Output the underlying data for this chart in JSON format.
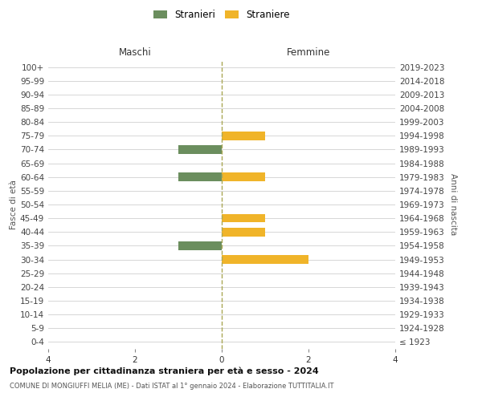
{
  "age_groups": [
    "100+",
    "95-99",
    "90-94",
    "85-89",
    "80-84",
    "75-79",
    "70-74",
    "65-69",
    "60-64",
    "55-59",
    "50-54",
    "45-49",
    "40-44",
    "35-39",
    "30-34",
    "25-29",
    "20-24",
    "15-19",
    "10-14",
    "5-9",
    "0-4"
  ],
  "birth_years": [
    "≤ 1923",
    "1924-1928",
    "1929-1933",
    "1934-1938",
    "1939-1943",
    "1944-1948",
    "1949-1953",
    "1954-1958",
    "1959-1963",
    "1964-1968",
    "1969-1973",
    "1974-1978",
    "1979-1983",
    "1984-1988",
    "1989-1993",
    "1994-1998",
    "1999-2003",
    "2004-2008",
    "2009-2013",
    "2014-2018",
    "2019-2023"
  ],
  "maschi": [
    0,
    0,
    0,
    0,
    0,
    0,
    1,
    0,
    1,
    0,
    0,
    0,
    0,
    1,
    0,
    0,
    0,
    0,
    0,
    0,
    0
  ],
  "femmine": [
    0,
    0,
    0,
    0,
    0,
    1,
    0,
    0,
    1,
    0,
    0,
    1,
    1,
    0,
    2,
    0,
    0,
    0,
    0,
    0,
    0
  ],
  "color_maschi": "#6b8e5e",
  "color_femmine": "#f0b429",
  "title": "Popolazione per cittadinanza straniera per età e sesso - 2024",
  "subtitle": "COMUNE DI MONGIUFFI MELIA (ME) - Dati ISTAT al 1° gennaio 2024 - Elaborazione TUTTITALIA.IT",
  "xlabel_left": "Maschi",
  "xlabel_right": "Femmine",
  "ylabel_left": "Fasce di età",
  "ylabel_right": "Anni di nascita",
  "legend_maschi": "Stranieri",
  "legend_femmine": "Straniere",
  "xlim": 4,
  "bg_color": "#ffffff",
  "grid_color": "#d0d0d0",
  "center_line_color": "#aaa855"
}
